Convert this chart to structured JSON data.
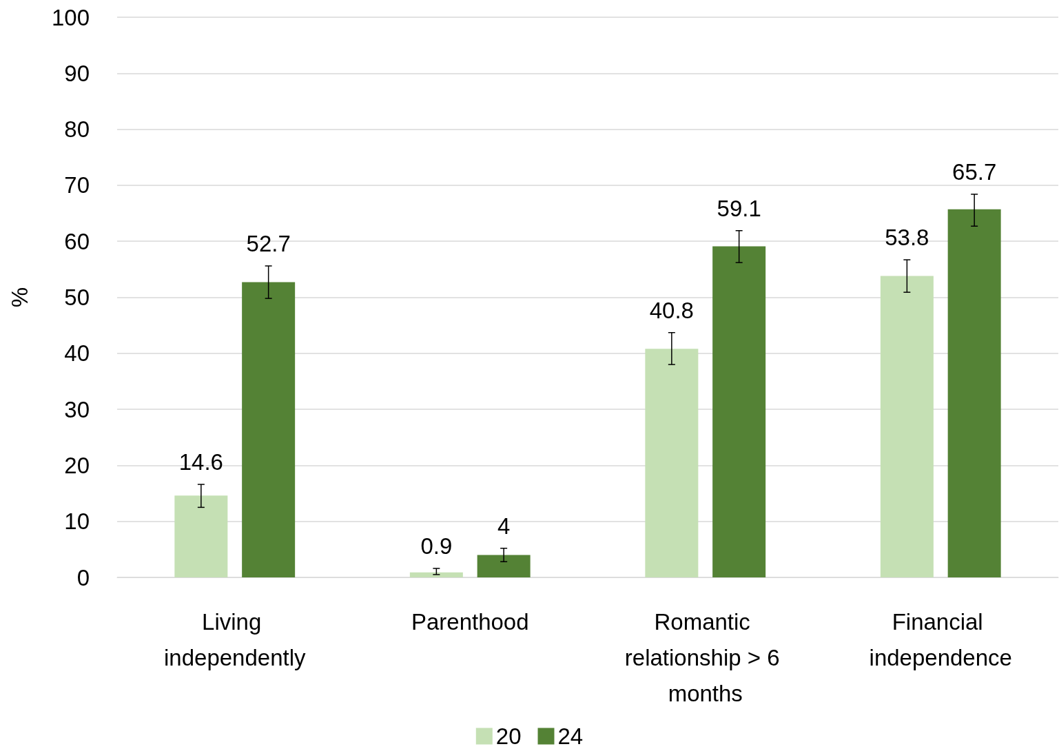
{
  "chart_data": {
    "type": "bar",
    "ylabel": "%",
    "categories": [
      "Living independently",
      "Parenthood",
      "Romantic relationship > 6 months",
      "Financial independence"
    ],
    "series": [
      {
        "name": "20",
        "color": "#c5e0b4",
        "values": [
          14.6,
          0.9,
          40.8,
          53.8
        ],
        "errors": [
          [
            12.5,
            16.6
          ],
          [
            0.5,
            1.6
          ],
          [
            38.0,
            43.7
          ],
          [
            50.9,
            56.7
          ]
        ]
      },
      {
        "name": "24",
        "color": "#548235",
        "values": [
          52.7,
          4,
          59.1,
          65.7
        ],
        "errors": [
          [
            49.8,
            55.6
          ],
          [
            2.8,
            5.2
          ],
          [
            56.2,
            61.9
          ],
          [
            62.7,
            68.4
          ]
        ]
      }
    ],
    "ylim": [
      0,
      100
    ],
    "yticks": [
      0,
      10,
      20,
      30,
      40,
      50,
      60,
      70,
      80,
      90,
      100
    ],
    "grid": "y",
    "legend": "bottom",
    "data_labels": true
  }
}
